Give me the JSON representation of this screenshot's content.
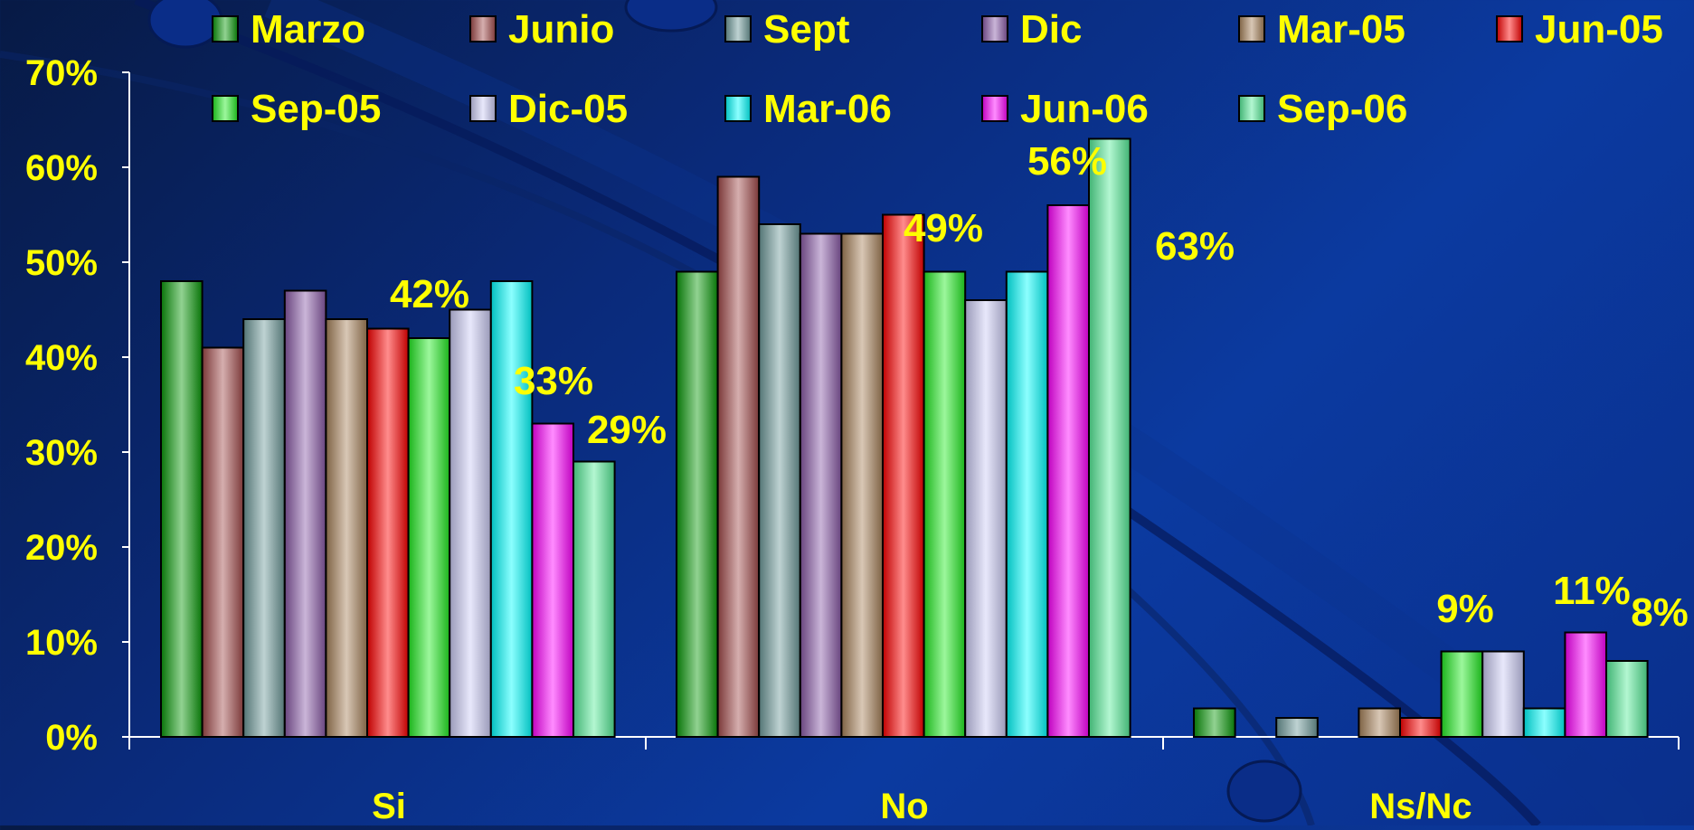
{
  "chart_data": {
    "type": "bar",
    "categories": [
      "Si",
      "No",
      "Ns/Nc"
    ],
    "series": [
      {
        "name": "Marzo",
        "color": "#0a9a0a",
        "values": [
          48,
          49,
          3
        ]
      },
      {
        "name": "Junio",
        "color": "#a24a4a",
        "values": [
          41,
          59,
          null
        ]
      },
      {
        "name": "Sept",
        "color": "#6e9a9a",
        "values": [
          44,
          54,
          2
        ]
      },
      {
        "name": "Dic",
        "color": "#8a5aa8",
        "values": [
          47,
          53,
          null
        ]
      },
      {
        "name": "Mar-05",
        "color": "#a8825a",
        "values": [
          44,
          53,
          3
        ]
      },
      {
        "name": "Jun-05",
        "color": "#ff0000",
        "values": [
          43,
          55,
          2
        ]
      },
      {
        "name": "Sep-05",
        "color": "#22ee22",
        "values": [
          42,
          49,
          9
        ]
      },
      {
        "name": "Dic-05",
        "color": "#ccccf5",
        "values": [
          45,
          46,
          9
        ]
      },
      {
        "name": "Mar-06",
        "color": "#00ffff",
        "values": [
          48,
          49,
          3
        ]
      },
      {
        "name": "Jun-06",
        "color": "#ff00ff",
        "values": [
          33,
          56,
          11
        ]
      },
      {
        "name": "Sep-06",
        "color": "#55ee99",
        "values": [
          29,
          63,
          8
        ]
      }
    ],
    "y_ticks": [
      "0%",
      "10%",
      "20%",
      "30%",
      "40%",
      "50%",
      "60%",
      "70%"
    ],
    "ylim": [
      0,
      70
    ],
    "data_labels": [
      {
        "text": "42%"
      },
      {
        "text": "33%"
      },
      {
        "text": "29%"
      },
      {
        "text": "49%"
      },
      {
        "text": "56%"
      },
      {
        "text": "63%"
      },
      {
        "text": "9%"
      },
      {
        "text": "11%"
      },
      {
        "text": "8%"
      }
    ],
    "legend": "top",
    "grid": false
  },
  "colors": {
    "text": "#ffff00",
    "axis": "#ffffff",
    "background": "#0a2f8c"
  }
}
